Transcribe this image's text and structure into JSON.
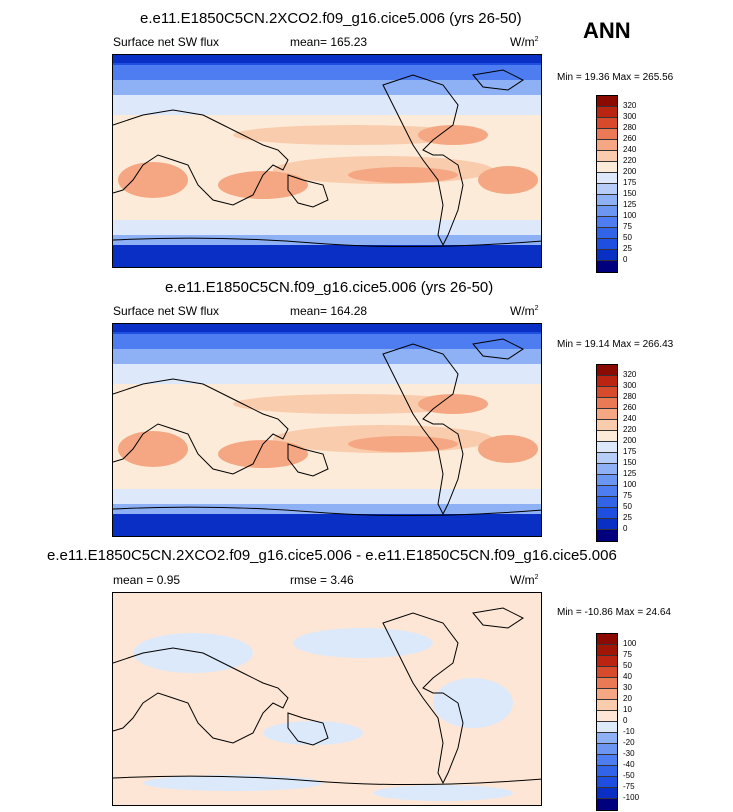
{
  "season": "ANN",
  "panels": [
    {
      "title": "e.e11.E1850C5CN.2XCO2.f09_g16.cice5.006 (yrs 26-50)",
      "left_label": "Surface net SW flux",
      "mid_label": "mean= 165.23",
      "units": "W/m",
      "units_exp": "2",
      "minmax": "Min =  19.36 Max = 265.56",
      "levels": [
        "320",
        "300",
        "280",
        "260",
        "240",
        "220",
        "200",
        "175",
        "150",
        "125",
        "100",
        "75",
        "50",
        "25",
        "0"
      ]
    },
    {
      "title": "e.e11.E1850C5CN.f09_g16.cice5.006 (yrs 26-50)",
      "left_label": "Surface net SW flux",
      "mid_label": "mean= 164.28",
      "units": "W/m",
      "units_exp": "2",
      "minmax": "Min =  19.14 Max = 266.43",
      "levels": [
        "320",
        "300",
        "280",
        "260",
        "240",
        "220",
        "200",
        "175",
        "150",
        "125",
        "100",
        "75",
        "50",
        "25",
        "0"
      ]
    },
    {
      "title": "e.e11.E1850C5CN.2XCO2.f09_g16.cice5.006 - e.e11.E1850C5CN.f09_g16.cice5.006",
      "left_label": "mean =   0.95",
      "mid_label": "rmse =   3.46",
      "units": "W/m",
      "units_exp": "2",
      "minmax": "Min = -10.86 Max =  24.64",
      "levels": [
        "100",
        "75",
        "50",
        "40",
        "30",
        "20",
        "10",
        "0",
        "-10",
        "-20",
        "-30",
        "-40",
        "-50",
        "-75",
        "-100"
      ]
    }
  ],
  "chart_data": [
    {
      "type": "heatmap",
      "title": "e.e11.E1850C5CN.2XCO2.f09_g16.cice5.006 (yrs 26-50)",
      "variable": "Surface net SW flux",
      "units": "W/m2",
      "mean": 165.23,
      "min": 19.36,
      "max": 265.56,
      "contour_levels": [
        0,
        25,
        50,
        75,
        100,
        125,
        150,
        175,
        200,
        220,
        240,
        260,
        280,
        300,
        320
      ],
      "colors": [
        "#00007f",
        "#0a2fc4",
        "#1e4fe0",
        "#3264e8",
        "#4d7df0",
        "#6b96f2",
        "#8eb0f4",
        "#b6cdf7",
        "#dde8fa",
        "#fdebd9",
        "#f9ccae",
        "#f4a782",
        "#ea7a55",
        "#d84a2c",
        "#bb2410",
        "#8a0a00"
      ]
    },
    {
      "type": "heatmap",
      "title": "e.e11.E1850C5CN.f09_g16.cice5.006 (yrs 26-50)",
      "variable": "Surface net SW flux",
      "units": "W/m2",
      "mean": 164.28,
      "min": 19.14,
      "max": 266.43,
      "contour_levels": [
        0,
        25,
        50,
        75,
        100,
        125,
        150,
        175,
        200,
        220,
        240,
        260,
        280,
        300,
        320
      ],
      "colors": [
        "#00007f",
        "#0a2fc4",
        "#1e4fe0",
        "#3264e8",
        "#4d7df0",
        "#6b96f2",
        "#8eb0f4",
        "#b6cdf7",
        "#dde8fa",
        "#fdebd9",
        "#f9ccae",
        "#f4a782",
        "#ea7a55",
        "#d84a2c",
        "#bb2410",
        "#8a0a00"
      ]
    },
    {
      "type": "heatmap",
      "title": "e.e11.E1850C5CN.2XCO2.f09_g16.cice5.006 - e.e11.E1850C5CN.f09_g16.cice5.006",
      "units": "W/m2",
      "mean": 0.95,
      "rmse": 3.46,
      "min": -10.86,
      "max": 24.64,
      "contour_levels": [
        -100,
        -75,
        -50,
        -40,
        -30,
        -20,
        -10,
        0,
        10,
        20,
        30,
        40,
        50,
        75,
        100
      ],
      "colors": [
        "#00007f",
        "#0a2fc4",
        "#1e4fe0",
        "#3264e8",
        "#4d7df0",
        "#6b96f2",
        "#8eb0f4",
        "#dce9fb",
        "#fde6d6",
        "#f9ccae",
        "#f4a782",
        "#ea7a55",
        "#d84a2c",
        "#bb2410",
        "#a01505",
        "#8a0a00"
      ]
    }
  ]
}
